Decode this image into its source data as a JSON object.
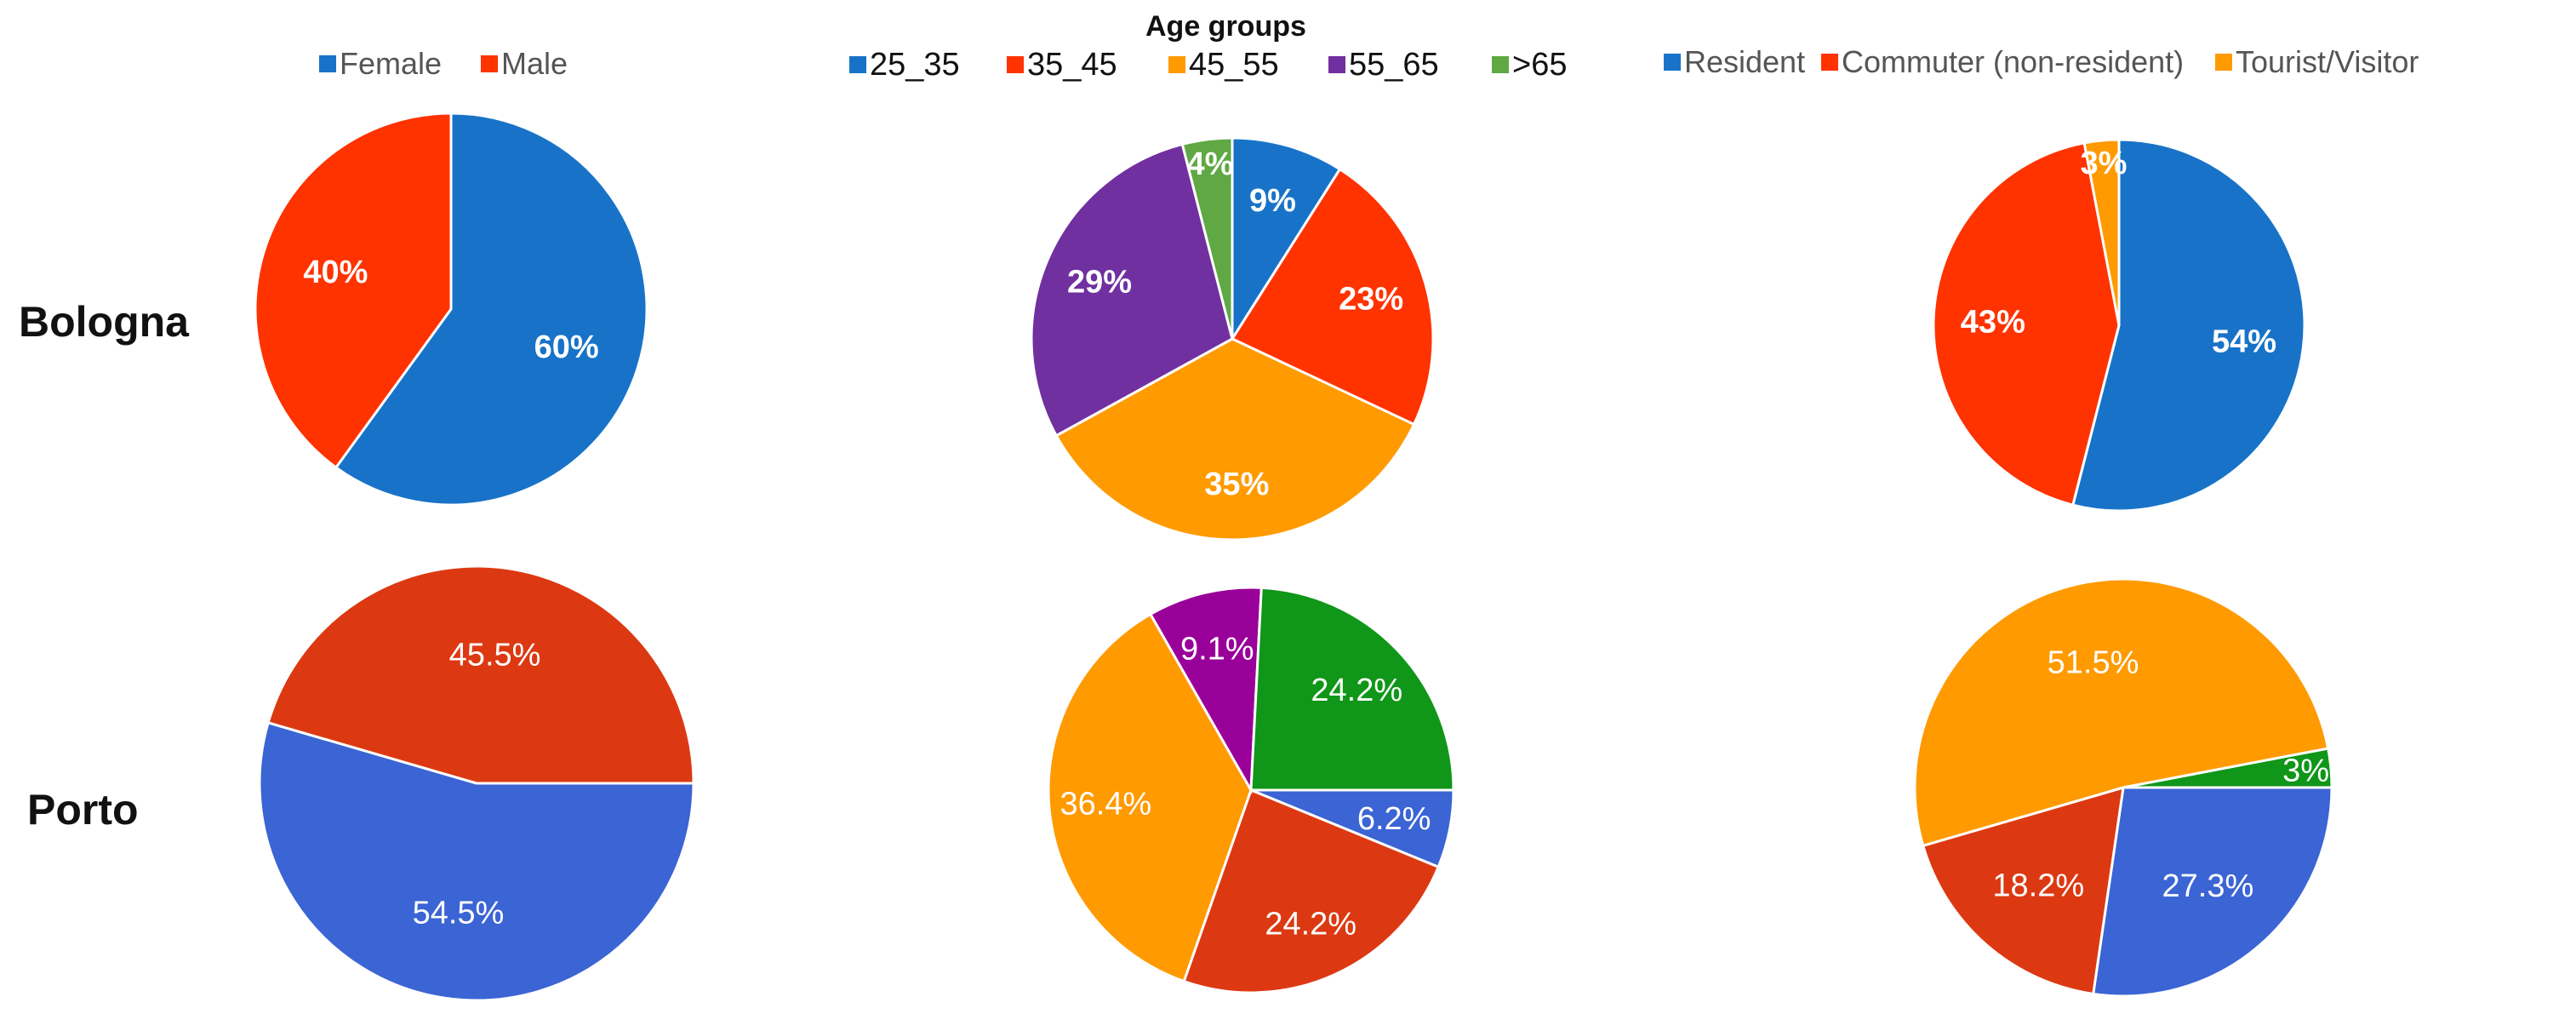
{
  "row_labels": {
    "bologna": "Bologna",
    "porto": "Porto"
  },
  "chart_data": [
    {
      "type": "pie",
      "title": "",
      "legend": "top",
      "legend_labels": [
        "Female",
        "Male"
      ],
      "legend_colors": [
        "#1873c8",
        "#ff3300"
      ],
      "slices": [
        {
          "label": "Female",
          "value": 60,
          "text": "60%",
          "color": "#1873c8"
        },
        {
          "label": "Male",
          "value": 40,
          "text": "40%",
          "color": "#ff3300"
        }
      ]
    },
    {
      "type": "pie",
      "title": "Age groups",
      "legend": "top",
      "legend_labels": [
        "25_35",
        "35_45",
        "45_55",
        "55_65",
        ">65"
      ],
      "legend_colors": [
        "#1873c8",
        "#ff3300",
        "#ff9a00",
        "#7030a0",
        "#5fa843"
      ],
      "slices": [
        {
          "label": "25_35",
          "value": 9,
          "text": "9%",
          "color": "#1873c8"
        },
        {
          "label": "35_45",
          "value": 23,
          "text": "23%",
          "color": "#ff3300"
        },
        {
          "label": "45_55",
          "value": 35,
          "text": "35%",
          "color": "#ff9a00"
        },
        {
          "label": "55_65",
          "value": 29,
          "text": "29%",
          "color": "#7030a0"
        },
        {
          "label": ">65",
          "value": 4,
          "text": "4%",
          "color": "#5fa843"
        }
      ]
    },
    {
      "type": "pie",
      "title": "",
      "legend": "top",
      "legend_labels": [
        "Resident",
        "Commuter (non-resident)",
        "Tourist/Visitor"
      ],
      "legend_colors": [
        "#1873c8",
        "#ff3300",
        "#ff9a00"
      ],
      "slices": [
        {
          "label": "Resident",
          "value": 54,
          "text": "54%",
          "color": "#1873c8"
        },
        {
          "label": "Commuter (non-resident)",
          "value": 43,
          "text": "43%",
          "color": "#ff3300"
        },
        {
          "label": "Tourist/Visitor",
          "value": 3,
          "text": "3%",
          "color": "#ff9a00"
        }
      ]
    },
    {
      "type": "pie",
      "title": "",
      "slices": [
        {
          "label": "Female",
          "value": 54.5,
          "text": "54.5%",
          "color": "#3b64d4"
        },
        {
          "label": "Male",
          "value": 45.5,
          "text": "45.5%",
          "color": "#dc3912"
        }
      ]
    },
    {
      "type": "pie",
      "title": "",
      "slices": [
        {
          "label": "25_35",
          "value": 6.2,
          "text": "6.2%",
          "color": "#3b64d4"
        },
        {
          "label": "35_45",
          "value": 24.2,
          "text": "24.2%",
          "color": "#dc3912"
        },
        {
          "label": "45_55",
          "value": 36.4,
          "text": "36.4%",
          "color": "#ff9a00"
        },
        {
          "label": "55_65",
          "value": 9.1,
          "text": "9.1%",
          "color": "#990099"
        },
        {
          "label": ">65",
          "value": 24.2,
          "text": "24.2%",
          "color": "#109618"
        }
      ]
    },
    {
      "type": "pie",
      "title": "",
      "slices": [
        {
          "label": "Resident",
          "value": 27.3,
          "text": "27.3%",
          "color": "#3b64d4"
        },
        {
          "label": "Commuter (non-resident)",
          "value": 18.2,
          "text": "18.2%",
          "color": "#dc3912"
        },
        {
          "label": "Tourist/Visitor",
          "value": 51.5,
          "text": "51.5%",
          "color": "#ff9a00"
        },
        {
          "label": "",
          "value": 3,
          "text": "3%",
          "color": "#109618"
        }
      ]
    }
  ]
}
